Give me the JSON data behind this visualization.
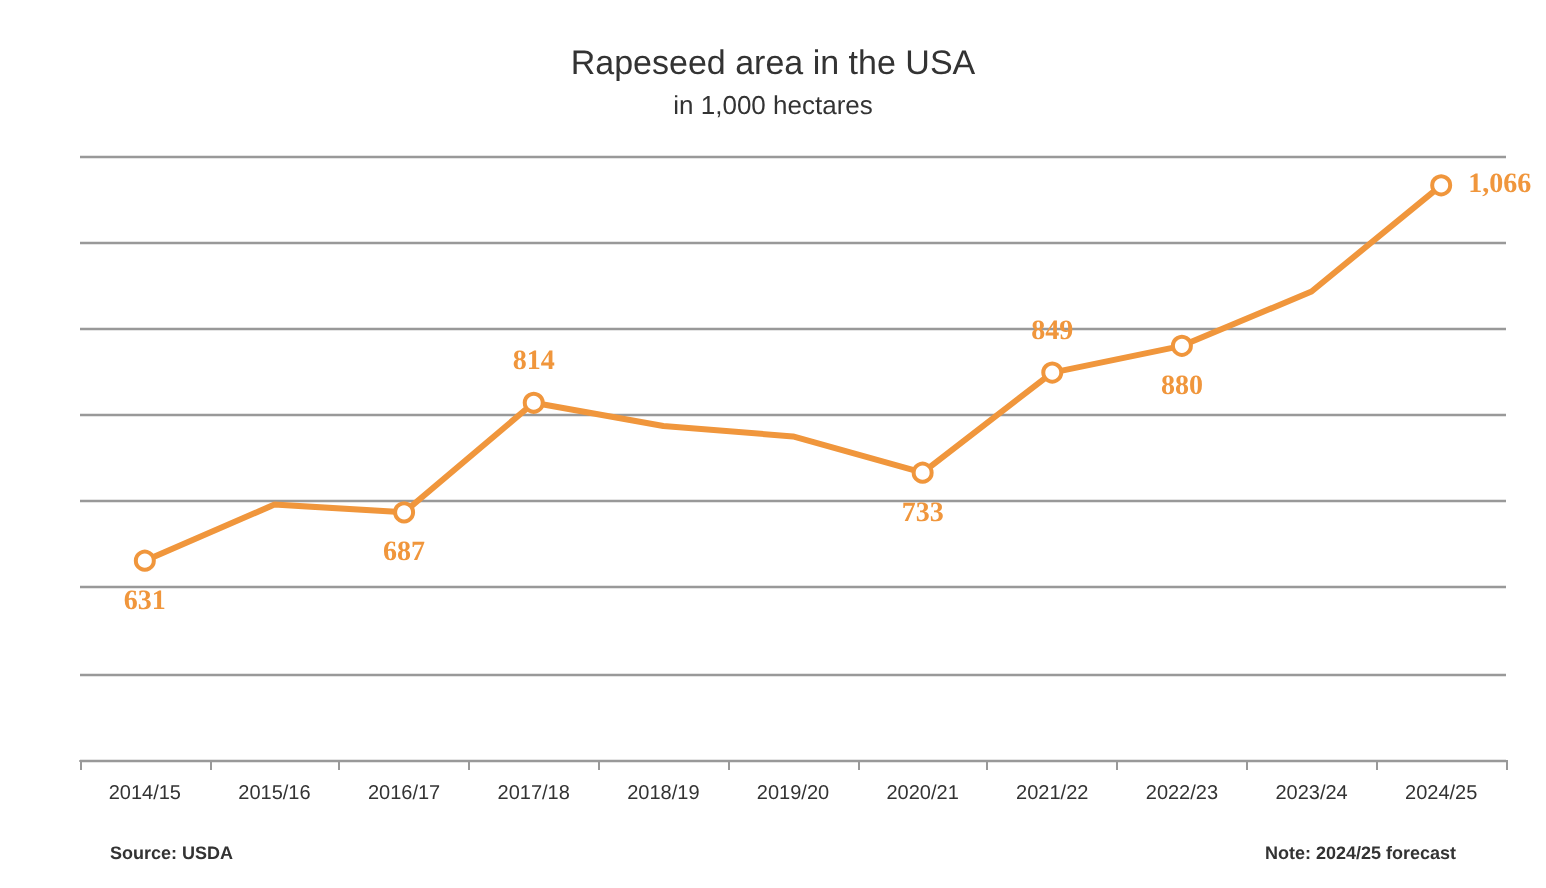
{
  "chart_data": {
    "type": "line",
    "title": "Rapeseed area in the USA",
    "subtitle": "in 1,000 hectares",
    "categories": [
      "2014/15",
      "2015/16",
      "2016/17",
      "2017/18",
      "2018/19",
      "2019/20",
      "2020/21",
      "2021/22",
      "2022/23",
      "2023/24",
      "2024/25"
    ],
    "series": [
      {
        "color": "#f0963c",
        "values": [
          631,
          696,
          687,
          814,
          787,
          775,
          733,
          849,
          880,
          943,
          1066
        ],
        "value_labels": [
          "631",
          null,
          "687",
          "814",
          null,
          null,
          "733",
          "849",
          "880",
          null,
          "1,066"
        ]
      }
    ],
    "ylim": [
      400,
      1100
    ],
    "yticks": [
      {
        "value": 400,
        "label": null
      },
      {
        "value": 500,
        "label": null
      },
      {
        "value": 600,
        "label": null
      },
      {
        "value": 700,
        "label": null
      },
      {
        "value": 800,
        "label": null
      },
      {
        "value": 900,
        "label": null
      },
      {
        "value": 1000,
        "label": null
      },
      {
        "value": 1100,
        "label": null
      }
    ],
    "tick_labels": "x",
    "grid": "y",
    "marker": "circle",
    "line_style": "solid",
    "annotations": [
      "Source: USDA",
      "Note: 2024/25 forecast"
    ]
  }
}
